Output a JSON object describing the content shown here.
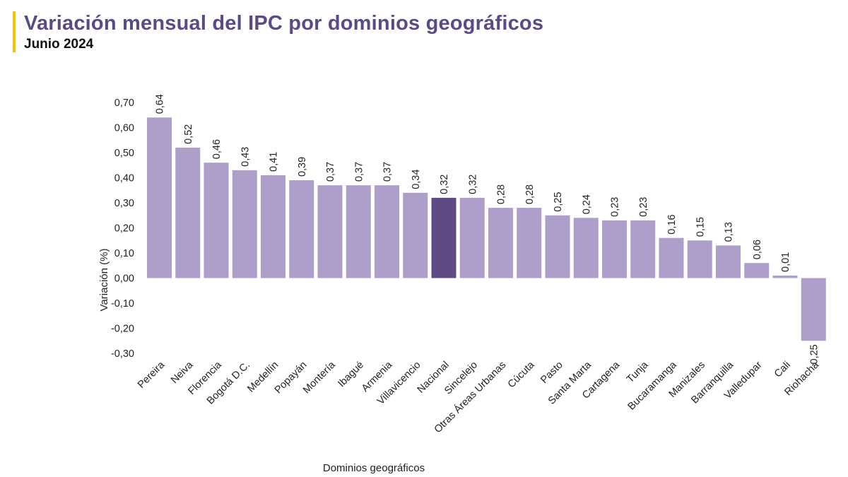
{
  "header": {
    "title": "Variación mensual del IPC por dominios geográficos",
    "subtitle": "Junio 2024"
  },
  "colors": {
    "bar": "#ae9fca",
    "highlight": "#5f4a83",
    "title": "#5b4a86",
    "accent_line": "#f2c300"
  },
  "chart_data": {
    "type": "bar",
    "xlabel": "Dominios geográficos",
    "ylabel": "Variación (%)",
    "ylim": [
      -0.3,
      0.7
    ],
    "yticks": [
      "0,70",
      "0,60",
      "0,50",
      "0,40",
      "0,30",
      "0,20",
      "0,10",
      "0,00",
      "-0,10",
      "-0,20",
      "-0,30"
    ],
    "categories": [
      "Pereira",
      "Neiva",
      "Florencia",
      "Bogotá D.C.",
      "Medellín",
      "Popayán",
      "Montería",
      "Ibagué",
      "Armenia",
      "Villavicencio",
      "Nacional",
      "Sincelejo",
      "Otras Áreas Urbanas",
      "Cúcuta",
      "Pasto",
      "Santa Marta",
      "Cartagena",
      "Tunja",
      "Bucaramanga",
      "Manizales",
      "Barranquilla",
      "Valledupar",
      "Cali",
      "Riohacha"
    ],
    "values": [
      0.64,
      0.52,
      0.46,
      0.43,
      0.41,
      0.39,
      0.37,
      0.37,
      0.37,
      0.34,
      0.32,
      0.32,
      0.28,
      0.28,
      0.25,
      0.24,
      0.23,
      0.23,
      0.16,
      0.15,
      0.13,
      0.06,
      0.01,
      -0.25
    ],
    "value_labels": [
      "0,64",
      "0,52",
      "0,46",
      "0,43",
      "0,41",
      "0,39",
      "0,37",
      "0,37",
      "0,37",
      "0,34",
      "0,32",
      "0,32",
      "0,28",
      "0,28",
      "0,25",
      "0,24",
      "0,23",
      "0,23",
      "0,16",
      "0,15",
      "0,13",
      "0,06",
      "0,01",
      "-0,25"
    ],
    "highlight_category": "Nacional",
    "grid": false,
    "legend": "none"
  }
}
